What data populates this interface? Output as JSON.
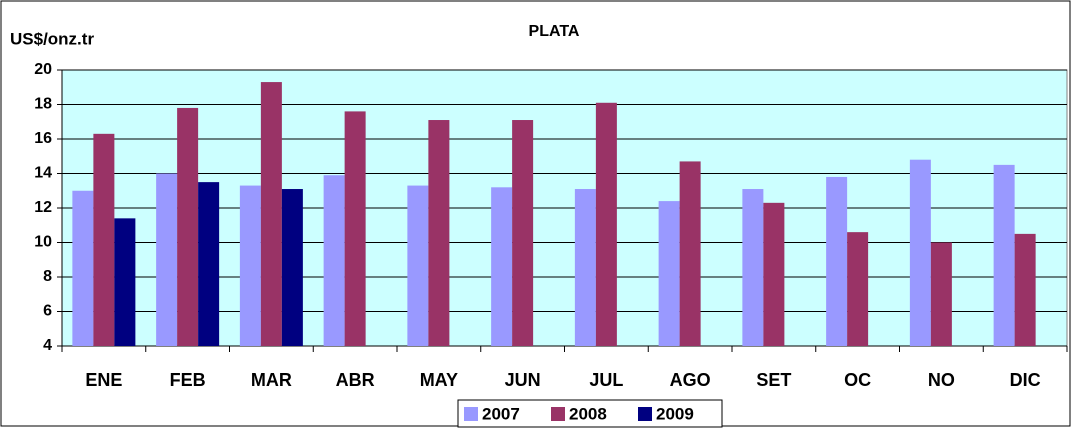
{
  "chart_data": {
    "type": "bar",
    "title": "PLATA",
    "y_label": "US$/onz.tr",
    "categories": [
      "ENE",
      "FEB",
      "MAR",
      "ABR",
      "MAY",
      "JUN",
      "JUL",
      "AGO",
      "SET",
      "OC",
      "NO",
      "DIC"
    ],
    "series": [
      {
        "name": "2007",
        "color": "#9999ff",
        "values": [
          13.0,
          14.0,
          13.3,
          13.9,
          13.3,
          13.2,
          13.1,
          12.4,
          13.1,
          13.8,
          14.8,
          14.5
        ]
      },
      {
        "name": "2008",
        "color": "#993366",
        "values": [
          16.3,
          17.8,
          19.3,
          17.6,
          17.1,
          17.1,
          18.1,
          14.7,
          12.3,
          10.6,
          10.0,
          10.5
        ]
      },
      {
        "name": "2009",
        "color": "#000080",
        "values": [
          11.4,
          13.5,
          13.1,
          null,
          null,
          null,
          null,
          null,
          null,
          null,
          null,
          null
        ]
      }
    ],
    "ylim": [
      4,
      20
    ],
    "yticks": [
      4,
      6,
      8,
      10,
      12,
      14,
      16,
      18,
      20
    ],
    "grid": true,
    "plot_background": "#ccffff",
    "legend": "bottom"
  }
}
